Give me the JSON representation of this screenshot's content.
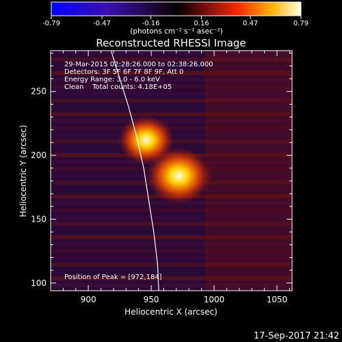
{
  "chart_data": {
    "type": "heatmap",
    "title": "Reconstructed RHESSI Image",
    "xlabel": "Heliocentric X (arcsec)",
    "ylabel": "Heliocentric Y (arcsec)",
    "xlim": [
      870,
      1062
    ],
    "ylim": [
      94,
      282
    ],
    "x_ticks": [
      900,
      950,
      1000,
      1050
    ],
    "y_ticks": [
      100,
      150,
      200,
      250
    ],
    "colorbar": {
      "ticks": [
        -0.79,
        -0.47,
        -0.16,
        0.16,
        0.47,
        0.79
      ],
      "tick_labels": [
        "-0.79",
        "-0.47",
        "-0.16",
        "0.16",
        "0.47",
        "0.79"
      ],
      "unit_label": "(photons cm⁻² s⁻¹ asec⁻²)",
      "range": [
        -0.79,
        0.79
      ],
      "colors": [
        "#0000ff",
        "#000000",
        "#7a0f0f",
        "#ff2a00",
        "#ffb000",
        "#ffffe0"
      ]
    },
    "sources": [
      {
        "x": 946,
        "y": 212,
        "intensity": 0.6
      },
      {
        "x": 972,
        "y": 184,
        "intensity": 0.79
      }
    ],
    "limb_curve": [
      [
        918,
        282
      ],
      [
        925,
        260
      ],
      [
        932,
        238
      ],
      [
        938,
        216
      ],
      [
        944,
        190
      ],
      [
        948,
        165
      ],
      [
        952,
        140
      ],
      [
        955,
        115
      ],
      [
        956,
        94
      ]
    ],
    "annotations": [
      "29-Mar-2015 02:28:26.000 to 02:38:26.000",
      "Detectors: 3F 5F 6F 7F 8F 9F, Att 0",
      "Energy Range: 3.0 - 6.0 keV",
      "Clean    Total counts: 4.18E+05"
    ],
    "peak_label": "Position of Peak = [972,184]",
    "timestamp": "17-Sep-2017 21:42"
  }
}
